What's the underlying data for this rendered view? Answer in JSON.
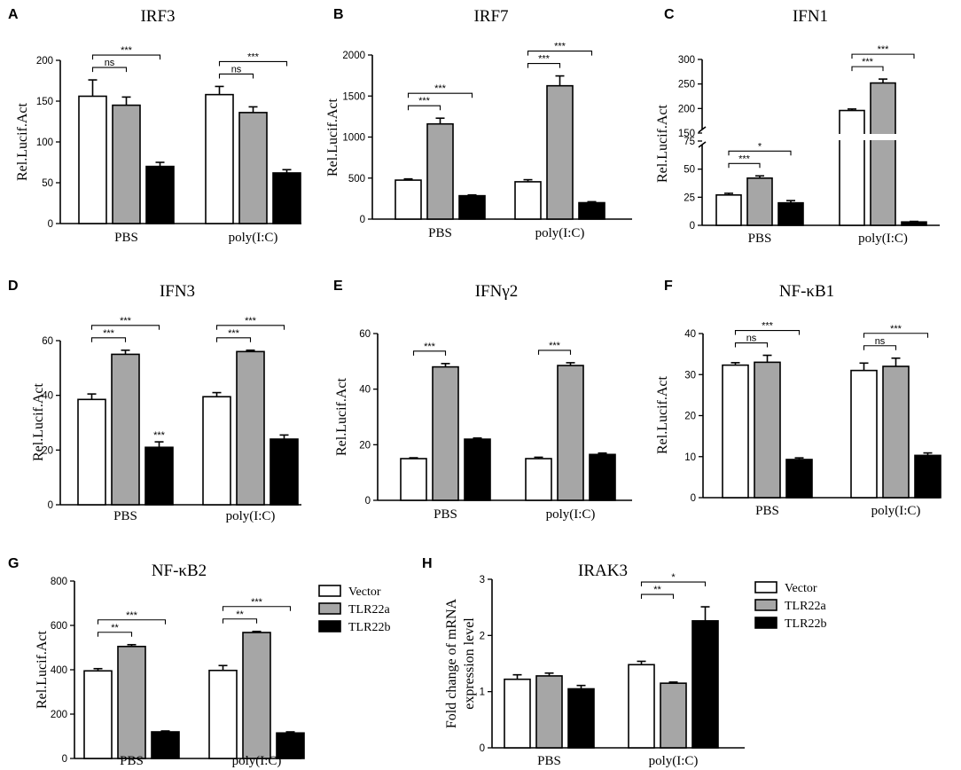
{
  "figure": {
    "legend": {
      "entries": [
        {
          "label": "Vector",
          "color": "#ffffff"
        },
        {
          "label": "TLR22a",
          "color": "#a6a6a6"
        },
        {
          "label": "TLR22b",
          "color": "#000000"
        }
      ]
    }
  },
  "chart_data": [
    {
      "panel": "A",
      "type": "bar",
      "title": "IRF3",
      "ylabel": "Rel.Lucif.Act",
      "categories": [
        "PBS",
        "poly(I:C)"
      ],
      "ylim": [
        0,
        200
      ],
      "yticks": [
        0,
        50,
        100,
        150,
        200
      ],
      "series": [
        {
          "name": "Vector",
          "values": [
            156,
            158
          ],
          "errors": [
            20,
            10
          ]
        },
        {
          "name": "TLR22a",
          "values": [
            145,
            136
          ],
          "errors": [
            10,
            7
          ]
        },
        {
          "name": "TLR22b",
          "values": [
            70,
            62
          ],
          "errors": [
            5,
            4
          ]
        }
      ],
      "significance": [
        {
          "group": 0,
          "from": 0,
          "to": 1,
          "label": "ns"
        },
        {
          "group": 0,
          "from": 0,
          "to": 2,
          "label": "***"
        },
        {
          "group": 1,
          "from": 0,
          "to": 1,
          "label": "ns"
        },
        {
          "group": 1,
          "from": 0,
          "to": 2,
          "label": "***"
        }
      ]
    },
    {
      "panel": "B",
      "type": "bar",
      "title": "IRF7",
      "ylabel": "Rel.Lucif.Act",
      "categories": [
        "PBS",
        "poly(I:C)"
      ],
      "ylim": [
        0,
        2000
      ],
      "yticks": [
        0,
        500,
        1000,
        1500,
        2000
      ],
      "series": [
        {
          "name": "Vector",
          "values": [
            475,
            455
          ],
          "errors": [
            15,
            25
          ]
        },
        {
          "name": "TLR22a",
          "values": [
            1160,
            1625
          ],
          "errors": [
            70,
            120
          ]
        },
        {
          "name": "TLR22b",
          "values": [
            285,
            200
          ],
          "errors": [
            10,
            12
          ]
        }
      ],
      "significance": [
        {
          "group": 0,
          "from": 0,
          "to": 1,
          "label": "***"
        },
        {
          "group": 0,
          "from": 0,
          "to": 2,
          "label": "***"
        },
        {
          "group": 1,
          "from": 0,
          "to": 1,
          "label": "***"
        },
        {
          "group": 1,
          "from": 0,
          "to": 2,
          "label": "***"
        }
      ]
    },
    {
      "panel": "C",
      "type": "bar",
      "title": "IFN1",
      "ylabel": "Rel.Lucif.Act",
      "categories": [
        "PBS",
        "poly(I:C)"
      ],
      "axis_break": {
        "lower": [
          0,
          75
        ],
        "upper": [
          150,
          300
        ]
      },
      "yticks_lower": [
        0,
        25,
        50,
        75
      ],
      "yticks_upper": [
        150,
        200,
        250,
        300
      ],
      "series": [
        {
          "name": "Vector",
          "values": [
            27,
            196
          ],
          "errors": [
            1.5,
            3
          ]
        },
        {
          "name": "TLR22a",
          "values": [
            42,
            252
          ],
          "errors": [
            2,
            8
          ]
        },
        {
          "name": "TLR22b",
          "values": [
            20,
            3
          ],
          "errors": [
            2,
            0.5
          ]
        }
      ],
      "significance": [
        {
          "group": 0,
          "from": 0,
          "to": 1,
          "label": "***"
        },
        {
          "group": 0,
          "from": 0,
          "to": 2,
          "label": "*"
        },
        {
          "group": 1,
          "from": 0,
          "to": 1,
          "label": "***"
        },
        {
          "group": 1,
          "from": 0,
          "to": 2,
          "label": "***"
        }
      ]
    },
    {
      "panel": "D",
      "type": "bar",
      "title": "IFN3",
      "ylabel": "Rel.Lucif.Act",
      "categories": [
        "PBS",
        "poly(I:C)"
      ],
      "ylim": [
        0,
        60
      ],
      "yticks": [
        0,
        20,
        40,
        60
      ],
      "series": [
        {
          "name": "Vector",
          "values": [
            38.5,
            39.5
          ],
          "errors": [
            2,
            1.5
          ]
        },
        {
          "name": "TLR22a",
          "values": [
            55,
            56
          ],
          "errors": [
            1.5,
            0.5
          ]
        },
        {
          "name": "TLR22b",
          "values": [
            21,
            24
          ],
          "errors": [
            2,
            1.5
          ]
        }
      ],
      "significance": [
        {
          "group": 0,
          "from": 0,
          "to": 1,
          "label": "***"
        },
        {
          "group": 0,
          "from": 0,
          "to": 2,
          "label": "***"
        },
        {
          "group": 1,
          "from": 0,
          "to": 1,
          "label": "***"
        },
        {
          "group": 1,
          "from": 0,
          "to": 2,
          "label": "***"
        }
      ],
      "bar_labels": [
        {
          "group": 0,
          "series": 2,
          "label": "***"
        }
      ]
    },
    {
      "panel": "E",
      "type": "bar",
      "title": "IFNγ2",
      "ylabel": "Rel.Lucif.Act",
      "categories": [
        "PBS",
        "poly(I:C)"
      ],
      "ylim": [
        0,
        60
      ],
      "yticks": [
        0,
        20,
        40,
        60
      ],
      "series": [
        {
          "name": "Vector",
          "values": [
            15,
            15
          ],
          "errors": [
            0.3,
            0.5
          ]
        },
        {
          "name": "TLR22a",
          "values": [
            48,
            48.5
          ],
          "errors": [
            1.2,
            1
          ]
        },
        {
          "name": "TLR22b",
          "values": [
            22,
            16.5
          ],
          "errors": [
            0.4,
            0.5
          ]
        }
      ],
      "significance": [
        {
          "group": 0,
          "from": 0,
          "to": 1,
          "label": "***"
        },
        {
          "group": 1,
          "from": 0,
          "to": 1,
          "label": "***"
        }
      ]
    },
    {
      "panel": "F",
      "type": "bar",
      "title": "NF-κB1",
      "ylabel": "Rel.Lucif.Act",
      "categories": [
        "PBS",
        "poly(I:C)"
      ],
      "ylim": [
        0,
        40
      ],
      "yticks": [
        0,
        10,
        20,
        30,
        40
      ],
      "series": [
        {
          "name": "Vector",
          "values": [
            32.3,
            31
          ],
          "errors": [
            0.6,
            1.8
          ]
        },
        {
          "name": "TLR22a",
          "values": [
            33,
            32
          ],
          "errors": [
            1.7,
            2
          ]
        },
        {
          "name": "TLR22b",
          "values": [
            9.3,
            10.3
          ],
          "errors": [
            0.4,
            0.6
          ]
        }
      ],
      "significance": [
        {
          "group": 0,
          "from": 0,
          "to": 1,
          "label": "ns"
        },
        {
          "group": 0,
          "from": 0,
          "to": 2,
          "label": "***"
        },
        {
          "group": 1,
          "from": 0,
          "to": 1,
          "label": "ns"
        },
        {
          "group": 1,
          "from": 0,
          "to": 2,
          "label": "***"
        }
      ]
    },
    {
      "panel": "G",
      "type": "bar",
      "title": "NF-κB2",
      "ylabel": "Rel.Lucif.Act",
      "categories": [
        "PBS",
        "poly(I:C)"
      ],
      "ylim": [
        0,
        800
      ],
      "yticks": [
        0,
        200,
        400,
        600,
        800
      ],
      "series": [
        {
          "name": "Vector",
          "values": [
            395,
            397
          ],
          "errors": [
            10,
            22
          ]
        },
        {
          "name": "TLR22a",
          "values": [
            505,
            568
          ],
          "errors": [
            8,
            5
          ]
        },
        {
          "name": "TLR22b",
          "values": [
            120,
            115
          ],
          "errors": [
            4,
            5
          ]
        }
      ],
      "significance": [
        {
          "group": 0,
          "from": 0,
          "to": 1,
          "label": "**"
        },
        {
          "group": 0,
          "from": 0,
          "to": 2,
          "label": "***"
        },
        {
          "group": 1,
          "from": 0,
          "to": 1,
          "label": "**"
        },
        {
          "group": 1,
          "from": 0,
          "to": 2,
          "label": "***"
        }
      ]
    },
    {
      "panel": "H",
      "type": "bar",
      "title": "IRAK3",
      "ylabel": "Fold change of mRNA expression level",
      "ylabel_lines": [
        "Fold change of mRNA",
        "expression level"
      ],
      "categories": [
        "PBS",
        "poly(I:C)"
      ],
      "ylim": [
        0,
        3
      ],
      "yticks": [
        0,
        1,
        2,
        3
      ],
      "series": [
        {
          "name": "Vector",
          "values": [
            1.22,
            1.48
          ],
          "errors": [
            0.08,
            0.06
          ]
        },
        {
          "name": "TLR22a",
          "values": [
            1.28,
            1.15
          ],
          "errors": [
            0.05,
            0.02
          ]
        },
        {
          "name": "TLR22b",
          "values": [
            1.05,
            2.26
          ],
          "errors": [
            0.06,
            0.25
          ]
        }
      ],
      "significance": [
        {
          "group": 1,
          "from": 0,
          "to": 1,
          "label": "**"
        },
        {
          "group": 1,
          "from": 0,
          "to": 2,
          "label": "*"
        }
      ]
    }
  ]
}
